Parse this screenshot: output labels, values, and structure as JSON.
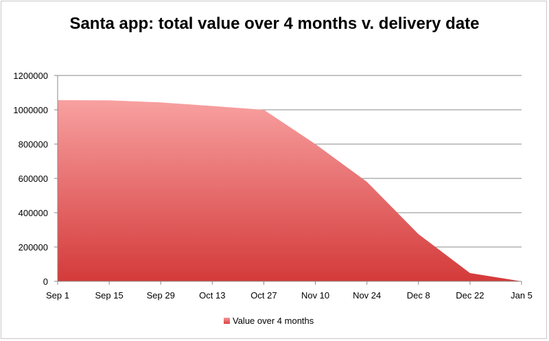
{
  "chart_data": {
    "type": "area",
    "title": "Santa app: total value over 4 months v. delivery date",
    "xlabel": "",
    "ylabel": "",
    "categories": [
      "Sep 1",
      "Sep 15",
      "Sep 29",
      "Oct 13",
      "Oct 27",
      "Nov 10",
      "Nov 24",
      "Dec 8",
      "Dec 22",
      "Jan 5"
    ],
    "series": [
      {
        "name": "Value over 4 months",
        "values": [
          1056000,
          1055000,
          1043000,
          1022000,
          1000000,
          800000,
          580000,
          275000,
          48000,
          0
        ]
      }
    ],
    "ylim": [
      0,
      1200000
    ],
    "yticks": [
      0,
      200000,
      400000,
      600000,
      800000,
      1000000,
      1200000
    ],
    "ytick_labels": [
      "0",
      "200000",
      "400000",
      "600000",
      "800000",
      "1000000",
      "1200000"
    ],
    "grid": true,
    "legend_position": "bottom",
    "colors": {
      "area_top": "#f8a0a0",
      "area_bottom": "#d43a3a",
      "grid": "#888888"
    }
  }
}
